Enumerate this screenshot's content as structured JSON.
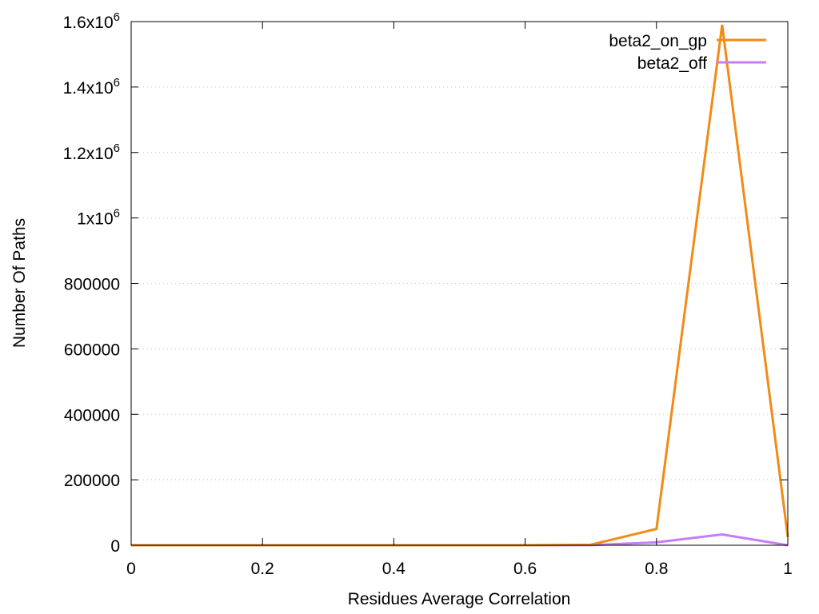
{
  "chart_data": {
    "type": "line",
    "title": "",
    "xlabel": "Residues Average Correlation",
    "ylabel": "Number Of Paths",
    "xlim": [
      0,
      1
    ],
    "ylim": [
      0,
      1600000
    ],
    "x_ticks": [
      0,
      0.2,
      0.4,
      0.6,
      0.8,
      1
    ],
    "x_tick_labels": [
      "0",
      "0.2",
      "0.4",
      "0.6",
      "0.8",
      "1"
    ],
    "y_ticks": [
      0,
      200000,
      400000,
      600000,
      800000,
      1000000,
      1200000,
      1400000,
      1600000
    ],
    "y_tick_labels": [
      {
        "mantissa": "0",
        "exp": ""
      },
      {
        "mantissa": "200000",
        "exp": ""
      },
      {
        "mantissa": "400000",
        "exp": ""
      },
      {
        "mantissa": "600000",
        "exp": ""
      },
      {
        "mantissa": "800000",
        "exp": ""
      },
      {
        "mantissa": "1x10",
        "exp": "6"
      },
      {
        "mantissa": "1.2x10",
        "exp": "6"
      },
      {
        "mantissa": "1.4x10",
        "exp": "6"
      },
      {
        "mantissa": "1.6x10",
        "exp": "6"
      }
    ],
    "grid": true,
    "legend_position": "top-right",
    "x": [
      0,
      0.1,
      0.2,
      0.3,
      0.4,
      0.5,
      0.6,
      0.7,
      0.8,
      0.9,
      1.0
    ],
    "series": [
      {
        "name": "beta2_on_gp",
        "color": "#f28a16",
        "values": [
          0,
          0,
          0,
          0,
          0,
          0,
          0,
          1500,
          50000,
          1590000,
          25000
        ]
      },
      {
        "name": "beta2_off",
        "color": "#c77cf5",
        "values": [
          0,
          0,
          0,
          0,
          0,
          0,
          0,
          200,
          9000,
          33000,
          0
        ]
      }
    ]
  }
}
